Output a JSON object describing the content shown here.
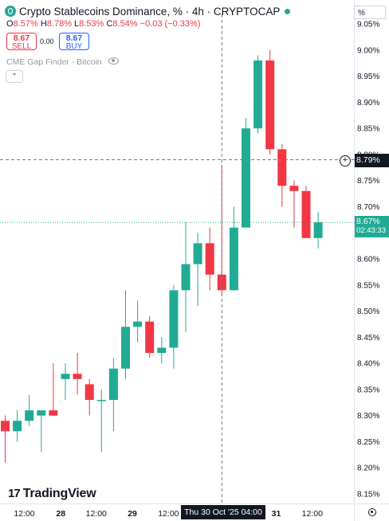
{
  "header": {
    "title": "Crypto Stablecoins Dominance, % · 4h · CRYPTOCAP",
    "unit_selector": "%",
    "ohlc": {
      "open_label": "O",
      "open": "8.57%",
      "high_label": "H",
      "high": "8.78%",
      "low_label": "L",
      "low": "8.53%",
      "close_label": "C",
      "close": "8.54%",
      "change": "−0.03 (−0.33%)"
    },
    "sell": {
      "price": "8.67",
      "label": "SELL"
    },
    "spread": "0.00",
    "buy": {
      "price": "8.67",
      "label": "BUY"
    },
    "indicator": "CME Gap Finder - Bitcoin",
    "collapse_glyph": "⌃",
    "colors": {
      "up": "#22ab94",
      "down": "#f23645",
      "text": "#131722",
      "buy": "#2962ff"
    }
  },
  "brand": {
    "logo_mark": "17",
    "name": "TradingView"
  },
  "crosshair": {
    "price_label": "8.79%",
    "time_label": "Thu 30 Oct '25  04:00",
    "y": 8.79
  },
  "current": {
    "price_label": "8.67%",
    "countdown": "02:43:33",
    "y": 8.67
  },
  "chart_data": {
    "type": "candlestick",
    "y_axis": {
      "ticks": [
        "9.05%",
        "9.00%",
        "8.95%",
        "8.90%",
        "8.85%",
        "8.80%",
        "8.75%",
        "8.70%",
        "8.65%",
        "8.60%",
        "8.55%",
        "8.50%",
        "8.45%",
        "8.40%",
        "8.35%",
        "8.30%",
        "8.25%",
        "8.20%",
        "8.15%"
      ],
      "range": [
        8.142,
        9.062
      ],
      "tick_values": [
        9.05,
        9.0,
        8.95,
        8.9,
        8.85,
        8.8,
        8.75,
        8.7,
        8.65,
        8.6,
        8.55,
        8.5,
        8.45,
        8.4,
        8.35,
        8.3,
        8.25,
        8.2,
        8.15
      ]
    },
    "x_axis": {
      "ticks": [
        {
          "label": "12:00",
          "at": 1.62
        },
        {
          "label": "28",
          "at": 4.65,
          "bold": true
        },
        {
          "label": "12:00",
          "at": 7.6
        },
        {
          "label": "29",
          "at": 10.6,
          "bold": true
        },
        {
          "label": "12:00",
          "at": 13.6
        },
        {
          "label": "31",
          "at": 22.55,
          "bold": true
        },
        {
          "label": "12:00",
          "at": 25.55
        }
      ]
    },
    "candles": [
      {
        "o": 8.29,
        "h": 8.3,
        "l": 8.21,
        "c": 8.27
      },
      {
        "o": 8.27,
        "h": 8.31,
        "l": 8.25,
        "c": 8.29
      },
      {
        "o": 8.29,
        "h": 8.34,
        "l": 8.28,
        "c": 8.31
      },
      {
        "o": 8.3,
        "h": 8.31,
        "l": 8.23,
        "c": 8.31
      },
      {
        "o": 8.31,
        "h": 8.4,
        "l": 8.3,
        "c": 8.3
      },
      {
        "o": 8.37,
        "h": 8.4,
        "l": 8.33,
        "c": 8.38
      },
      {
        "o": 8.38,
        "h": 8.42,
        "l": 8.34,
        "c": 8.37
      },
      {
        "o": 8.36,
        "h": 8.37,
        "l": 8.3,
        "c": 8.33
      },
      {
        "o": 8.33,
        "h": 8.35,
        "l": 8.23,
        "c": 8.33
      },
      {
        "o": 8.33,
        "h": 8.41,
        "l": 8.27,
        "c": 8.39
      },
      {
        "o": 8.39,
        "h": 8.54,
        "l": 8.37,
        "c": 8.47
      },
      {
        "o": 8.47,
        "h": 8.52,
        "l": 8.44,
        "c": 8.48
      },
      {
        "o": 8.48,
        "h": 8.49,
        "l": 8.41,
        "c": 8.42
      },
      {
        "o": 8.42,
        "h": 8.45,
        "l": 8.4,
        "c": 8.43
      },
      {
        "o": 8.43,
        "h": 8.55,
        "l": 8.39,
        "c": 8.54
      },
      {
        "o": 8.54,
        "h": 8.67,
        "l": 8.46,
        "c": 8.59
      },
      {
        "o": 8.59,
        "h": 8.65,
        "l": 8.51,
        "c": 8.63
      },
      {
        "o": 8.63,
        "h": 8.66,
        "l": 8.54,
        "c": 8.57
      },
      {
        "o": 8.57,
        "h": 8.78,
        "l": 8.53,
        "c": 8.54
      },
      {
        "o": 8.54,
        "h": 8.7,
        "l": 8.54,
        "c": 8.66
      },
      {
        "o": 8.66,
        "h": 8.87,
        "l": 8.66,
        "c": 8.85
      },
      {
        "o": 8.85,
        "h": 8.99,
        "l": 8.84,
        "c": 8.98
      },
      {
        "o": 8.98,
        "h": 9.0,
        "l": 8.8,
        "c": 8.81
      },
      {
        "o": 8.81,
        "h": 8.82,
        "l": 8.7,
        "c": 8.74
      },
      {
        "o": 8.74,
        "h": 8.75,
        "l": 8.66,
        "c": 8.73
      },
      {
        "o": 8.73,
        "h": 8.74,
        "l": 8.64,
        "c": 8.64
      },
      {
        "o": 8.64,
        "h": 8.69,
        "l": 8.62,
        "c": 8.67
      }
    ]
  }
}
